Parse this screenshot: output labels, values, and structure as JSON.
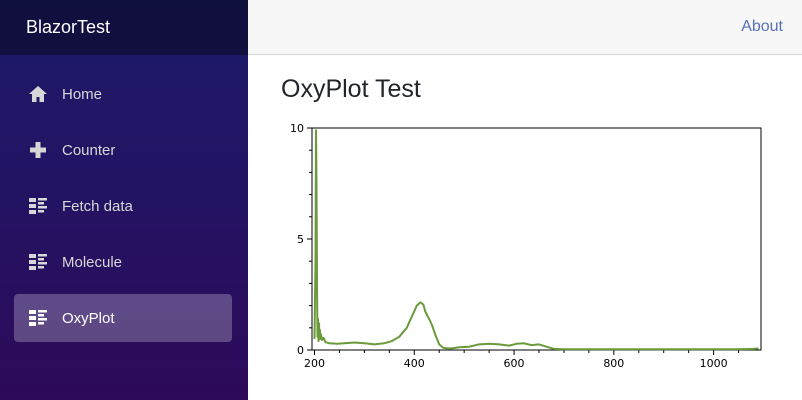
{
  "app": {
    "brand": "BlazorTest"
  },
  "topbar": {
    "about_label": "About"
  },
  "sidebar": {
    "items": [
      {
        "label": "Home",
        "icon": "home-icon",
        "active": false
      },
      {
        "label": "Counter",
        "icon": "plus-icon",
        "active": false
      },
      {
        "label": "Fetch data",
        "icon": "list-icon",
        "active": false
      },
      {
        "label": "Molecule",
        "icon": "list-icon",
        "active": false
      },
      {
        "label": "OxyPlot",
        "icon": "list-icon",
        "active": true
      }
    ]
  },
  "main": {
    "title": "OxyPlot Test"
  },
  "colors": {
    "series": "#6a9a3a",
    "accent_link": "#5a6fb8"
  },
  "chart_data": {
    "type": "line",
    "title": "",
    "xlabel": "",
    "ylabel": "",
    "xlim": [
      195,
      1095
    ],
    "ylim": [
      0,
      10
    ],
    "x_ticks": [
      200,
      400,
      600,
      800,
      1000
    ],
    "y_ticks": [
      0,
      5,
      10
    ],
    "grid": false,
    "series": [
      {
        "x": [
          200,
          202,
          203,
          204,
          205,
          206,
          207,
          208,
          209,
          210,
          211,
          212,
          213,
          215,
          218,
          222,
          230,
          245,
          260,
          280,
          300,
          320,
          340,
          355,
          370,
          385,
          395,
          405,
          412,
          418,
          422,
          426,
          430,
          436,
          442,
          450,
          458,
          465,
          475,
          490,
          510,
          530,
          550,
          570,
          590,
          605,
          620,
          635,
          650,
          665,
          680,
          700,
          750,
          800,
          900,
          1000,
          1050,
          1080,
          1090
        ],
        "y": [
          0.5,
          4.0,
          9.9,
          7.5,
          3.0,
          0.6,
          1.4,
          0.4,
          1.2,
          0.5,
          0.9,
          0.5,
          0.7,
          0.45,
          0.55,
          0.35,
          0.3,
          0.28,
          0.3,
          0.34,
          0.3,
          0.25,
          0.3,
          0.4,
          0.6,
          1.0,
          1.5,
          2.0,
          2.15,
          2.05,
          1.75,
          1.55,
          1.4,
          1.1,
          0.7,
          0.25,
          0.1,
          0.08,
          0.07,
          0.12,
          0.15,
          0.25,
          0.28,
          0.25,
          0.2,
          0.28,
          0.3,
          0.22,
          0.25,
          0.15,
          0.05,
          0.03,
          0.03,
          0.03,
          0.03,
          0.03,
          0.03,
          0.05,
          0.07
        ]
      }
    ]
  }
}
